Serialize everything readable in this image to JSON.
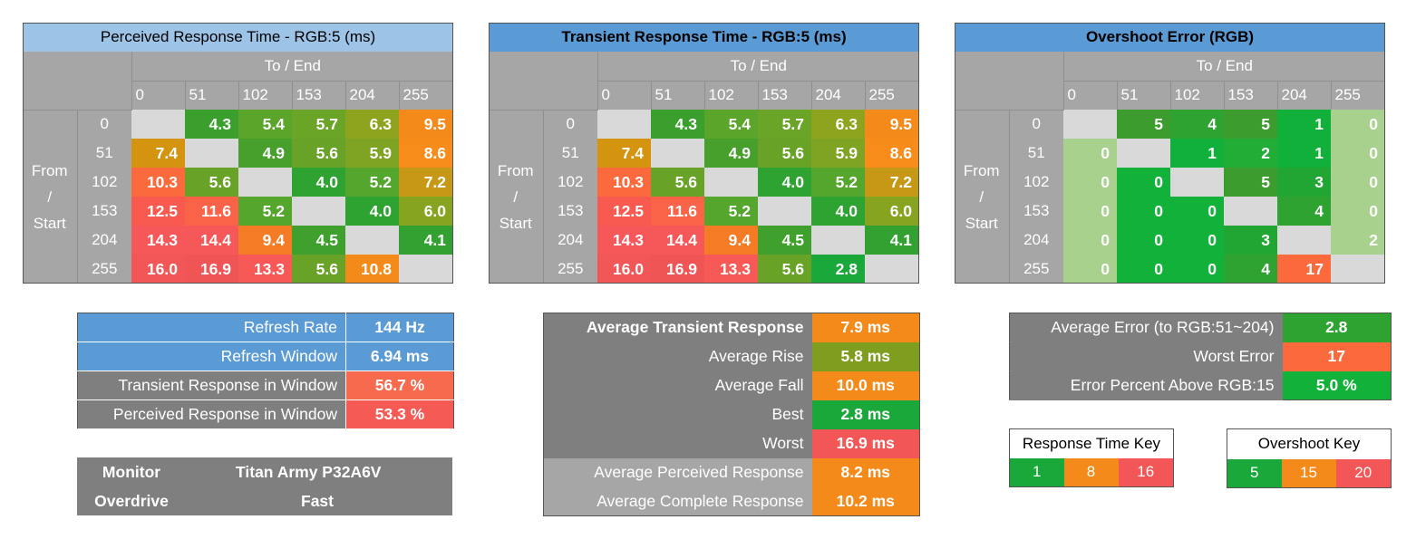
{
  "axes": {
    "to_end": "To / End",
    "from": "From",
    "slash": "/",
    "start": "Start"
  },
  "levels": [
    "0",
    "51",
    "102",
    "153",
    "204",
    "255"
  ],
  "chart_data": [
    {
      "type": "heatmap",
      "title": "Perceived Response Time - RGB:5 (ms)",
      "xlabel": "To / End",
      "ylabel": "From / Start",
      "x": [
        0,
        51,
        102,
        153,
        204,
        255
      ],
      "y": [
        0,
        51,
        102,
        153,
        204,
        255
      ],
      "values": [
        [
          null,
          "4.3",
          "5.4",
          "5.7",
          "6.3",
          "9.5"
        ],
        [
          "7.4",
          null,
          "4.9",
          "5.6",
          "5.9",
          "8.6"
        ],
        [
          "10.3",
          "5.6",
          null,
          "4.0",
          "5.2",
          "7.2"
        ],
        [
          "12.5",
          "11.6",
          "5.2",
          null,
          "4.0",
          "6.0"
        ],
        [
          "14.3",
          "14.4",
          "9.4",
          "4.5",
          null,
          "4.1"
        ],
        [
          "16.0",
          "16.9",
          "13.3",
          "5.6",
          "10.8",
          null
        ]
      ]
    },
    {
      "type": "heatmap",
      "title": "Transient Response Time - RGB:5 (ms)",
      "xlabel": "To / End",
      "ylabel": "From / Start",
      "x": [
        0,
        51,
        102,
        153,
        204,
        255
      ],
      "y": [
        0,
        51,
        102,
        153,
        204,
        255
      ],
      "values": [
        [
          null,
          "4.3",
          "5.4",
          "5.7",
          "6.3",
          "9.5"
        ],
        [
          "7.4",
          null,
          "4.9",
          "5.6",
          "5.9",
          "8.6"
        ],
        [
          "10.3",
          "5.6",
          null,
          "4.0",
          "5.2",
          "7.2"
        ],
        [
          "12.5",
          "11.6",
          "5.2",
          null,
          "4.0",
          "6.0"
        ],
        [
          "14.3",
          "14.4",
          "9.4",
          "4.5",
          null,
          "4.1"
        ],
        [
          "16.0",
          "16.9",
          "13.3",
          "5.6",
          "2.8",
          null
        ]
      ]
    },
    {
      "type": "heatmap",
      "title": "Overshoot Error (RGB)",
      "xlabel": "To / End",
      "ylabel": "From / Start",
      "x": [
        0,
        51,
        102,
        153,
        204,
        255
      ],
      "y": [
        0,
        51,
        102,
        153,
        204,
        255
      ],
      "values": [
        [
          null,
          "5",
          "4",
          "5",
          "1",
          "0"
        ],
        [
          "0",
          null,
          "1",
          "2",
          "1",
          "0"
        ],
        [
          "0",
          "0",
          null,
          "5",
          "3",
          "0"
        ],
        [
          "0",
          "0",
          "0",
          null,
          "4",
          "0"
        ],
        [
          "0",
          "0",
          "0",
          "3",
          null,
          "2"
        ],
        [
          "0",
          "0",
          "0",
          "4",
          "17",
          null
        ]
      ]
    }
  ],
  "panels": {
    "perceived": {
      "title": "Perceived Response Time - RGB:5 (ms)",
      "title_bg": "#9dc3e6",
      "title_bold": false
    },
    "transient": {
      "title": "Transient Response Time - RGB:5 (ms)",
      "title_bg": "#5b9bd5",
      "title_bold": true
    },
    "overshoot": {
      "title": "Overshoot Error (RGB)",
      "title_bg": "#5b9bd5",
      "title_bold": true
    }
  },
  "cell_colors": {
    "perceived": [
      [
        "#d9d9d9",
        "#3a9f2d",
        "#5aa52a",
        "#6ba528",
        "#8ea31e",
        "#f48a1a"
      ],
      [
        "#d5940f",
        "#d9d9d9",
        "#479f2c",
        "#68a328",
        "#7fa322",
        "#f88c1b"
      ],
      [
        "#fb6a3c",
        "#68a328",
        "#d9d9d9",
        "#2ea332",
        "#55a62c",
        "#c79815"
      ],
      [
        "#f85a50",
        "#fb6348",
        "#55a62c",
        "#d9d9d9",
        "#2ea332",
        "#87a421"
      ],
      [
        "#f6585a",
        "#f6585a",
        "#f47c25",
        "#40a02d",
        "#d9d9d9",
        "#33a132"
      ],
      [
        "#f25656",
        "#f05555",
        "#f75a56",
        "#68a328",
        "#f48a1a",
        "#d9d9d9"
      ]
    ],
    "transient": [
      [
        "#d9d9d9",
        "#3a9f2d",
        "#5aa52a",
        "#6ba528",
        "#8ea31e",
        "#f48a1a"
      ],
      [
        "#d5940f",
        "#d9d9d9",
        "#479f2c",
        "#68a328",
        "#7fa322",
        "#f88c1b"
      ],
      [
        "#fb6a3c",
        "#68a328",
        "#d9d9d9",
        "#2ea332",
        "#55a62c",
        "#c79815"
      ],
      [
        "#f85a50",
        "#fb6348",
        "#55a62c",
        "#d9d9d9",
        "#2ea332",
        "#87a421"
      ],
      [
        "#f6585a",
        "#f6585a",
        "#f47c25",
        "#40a02d",
        "#d9d9d9",
        "#33a132"
      ],
      [
        "#f25656",
        "#f05555",
        "#f75a56",
        "#68a328",
        "#1aa83a",
        "#d9d9d9"
      ]
    ],
    "overshoot": [
      [
        "#d9d9d9",
        "#3c9c2e",
        "#2ea332",
        "#3c9c2e",
        "#10b03a",
        "#a9d18e"
      ],
      [
        "#a9d18e",
        "#d9d9d9",
        "#10b03a",
        "#22ad36",
        "#10b03a",
        "#a9d18e"
      ],
      [
        "#a9d18e",
        "#12b23a",
        "#d9d9d9",
        "#3c9c2e",
        "#22a633",
        "#a9d18e"
      ],
      [
        "#a9d18e",
        "#12b23a",
        "#12b23a",
        "#d9d9d9",
        "#2ea332",
        "#a9d18e"
      ],
      [
        "#a9d18e",
        "#12b23a",
        "#12b23a",
        "#22a633",
        "#d9d9d9",
        "#a9d18e"
      ],
      [
        "#a9d18e",
        "#12b23a",
        "#12b23a",
        "#2ea332",
        "#fb6a3c",
        "#d9d9d9"
      ]
    ]
  },
  "refresh": {
    "rows": [
      {
        "label": "Refresh Rate",
        "value": "144 Hz",
        "label_bg": "#5b9bd5",
        "value_bg": "#5b9bd5"
      },
      {
        "label": "Refresh Window",
        "value": "6.94 ms",
        "label_bg": "#5b9bd5",
        "value_bg": "#5b9bd5"
      },
      {
        "label": "Transient Response in Window",
        "value": "56.7 %",
        "label_bg": "#7f7f7f",
        "value_bg": "#f86a4e"
      },
      {
        "label": "Perceived Response in Window",
        "value": "53.3 %",
        "label_bg": "#7f7f7f",
        "value_bg": "#f55a55"
      }
    ]
  },
  "monitor": {
    "monitor_label": "Monitor",
    "monitor_value": "Titan Army P32A6V",
    "overdrive_label": "Overdrive",
    "overdrive_value": "Fast"
  },
  "transient_stats": {
    "rows": [
      {
        "label": "Average Transient Response",
        "value": "7.9 ms",
        "label_bg": "#7f7f7f",
        "value_bg": "#f48a1a",
        "bold": true
      },
      {
        "label": "Average Rise",
        "value": "5.8 ms",
        "label_bg": "#7f7f7f",
        "value_bg": "#7f9d1e",
        "bold": false
      },
      {
        "label": "Average Fall",
        "value": "10.0 ms",
        "label_bg": "#7f7f7f",
        "value_bg": "#f48a1a",
        "bold": false
      },
      {
        "label": "Best",
        "value": "2.8 ms",
        "label_bg": "#7f7f7f",
        "value_bg": "#1aa83a",
        "bold": false
      },
      {
        "label": "Worst",
        "value": "16.9 ms",
        "label_bg": "#7f7f7f",
        "value_bg": "#f25656",
        "bold": false
      },
      {
        "label": "Average Perceived Response",
        "value": "8.2 ms",
        "label_bg": "#a6a6a6",
        "value_bg": "#f48a1a",
        "bold": false
      },
      {
        "label": "Average Complete Response",
        "value": "10.2 ms",
        "label_bg": "#a6a6a6",
        "value_bg": "#f48a1a",
        "bold": false
      }
    ]
  },
  "error_stats": {
    "rows": [
      {
        "label": "Average Error (to RGB:51~204)",
        "value": "2.8",
        "value_bg": "#2ea332"
      },
      {
        "label": "Worst Error",
        "value": "17",
        "value_bg": "#fb6a3c"
      },
      {
        "label": "Error Percent Above RGB:15",
        "value": "5.0 %",
        "value_bg": "#12b23a"
      }
    ]
  },
  "response_key": {
    "title": "Response Time Key",
    "items": [
      {
        "label": "1",
        "color": "#1aa83a"
      },
      {
        "label": "8",
        "color": "#f48a1a"
      },
      {
        "label": "16",
        "color": "#f25656"
      }
    ]
  },
  "overshoot_key": {
    "title": "Overshoot Key",
    "items": [
      {
        "label": "5",
        "color": "#1aa83a"
      },
      {
        "label": "15",
        "color": "#f48a1a"
      },
      {
        "label": "20",
        "color": "#f25656"
      }
    ]
  }
}
